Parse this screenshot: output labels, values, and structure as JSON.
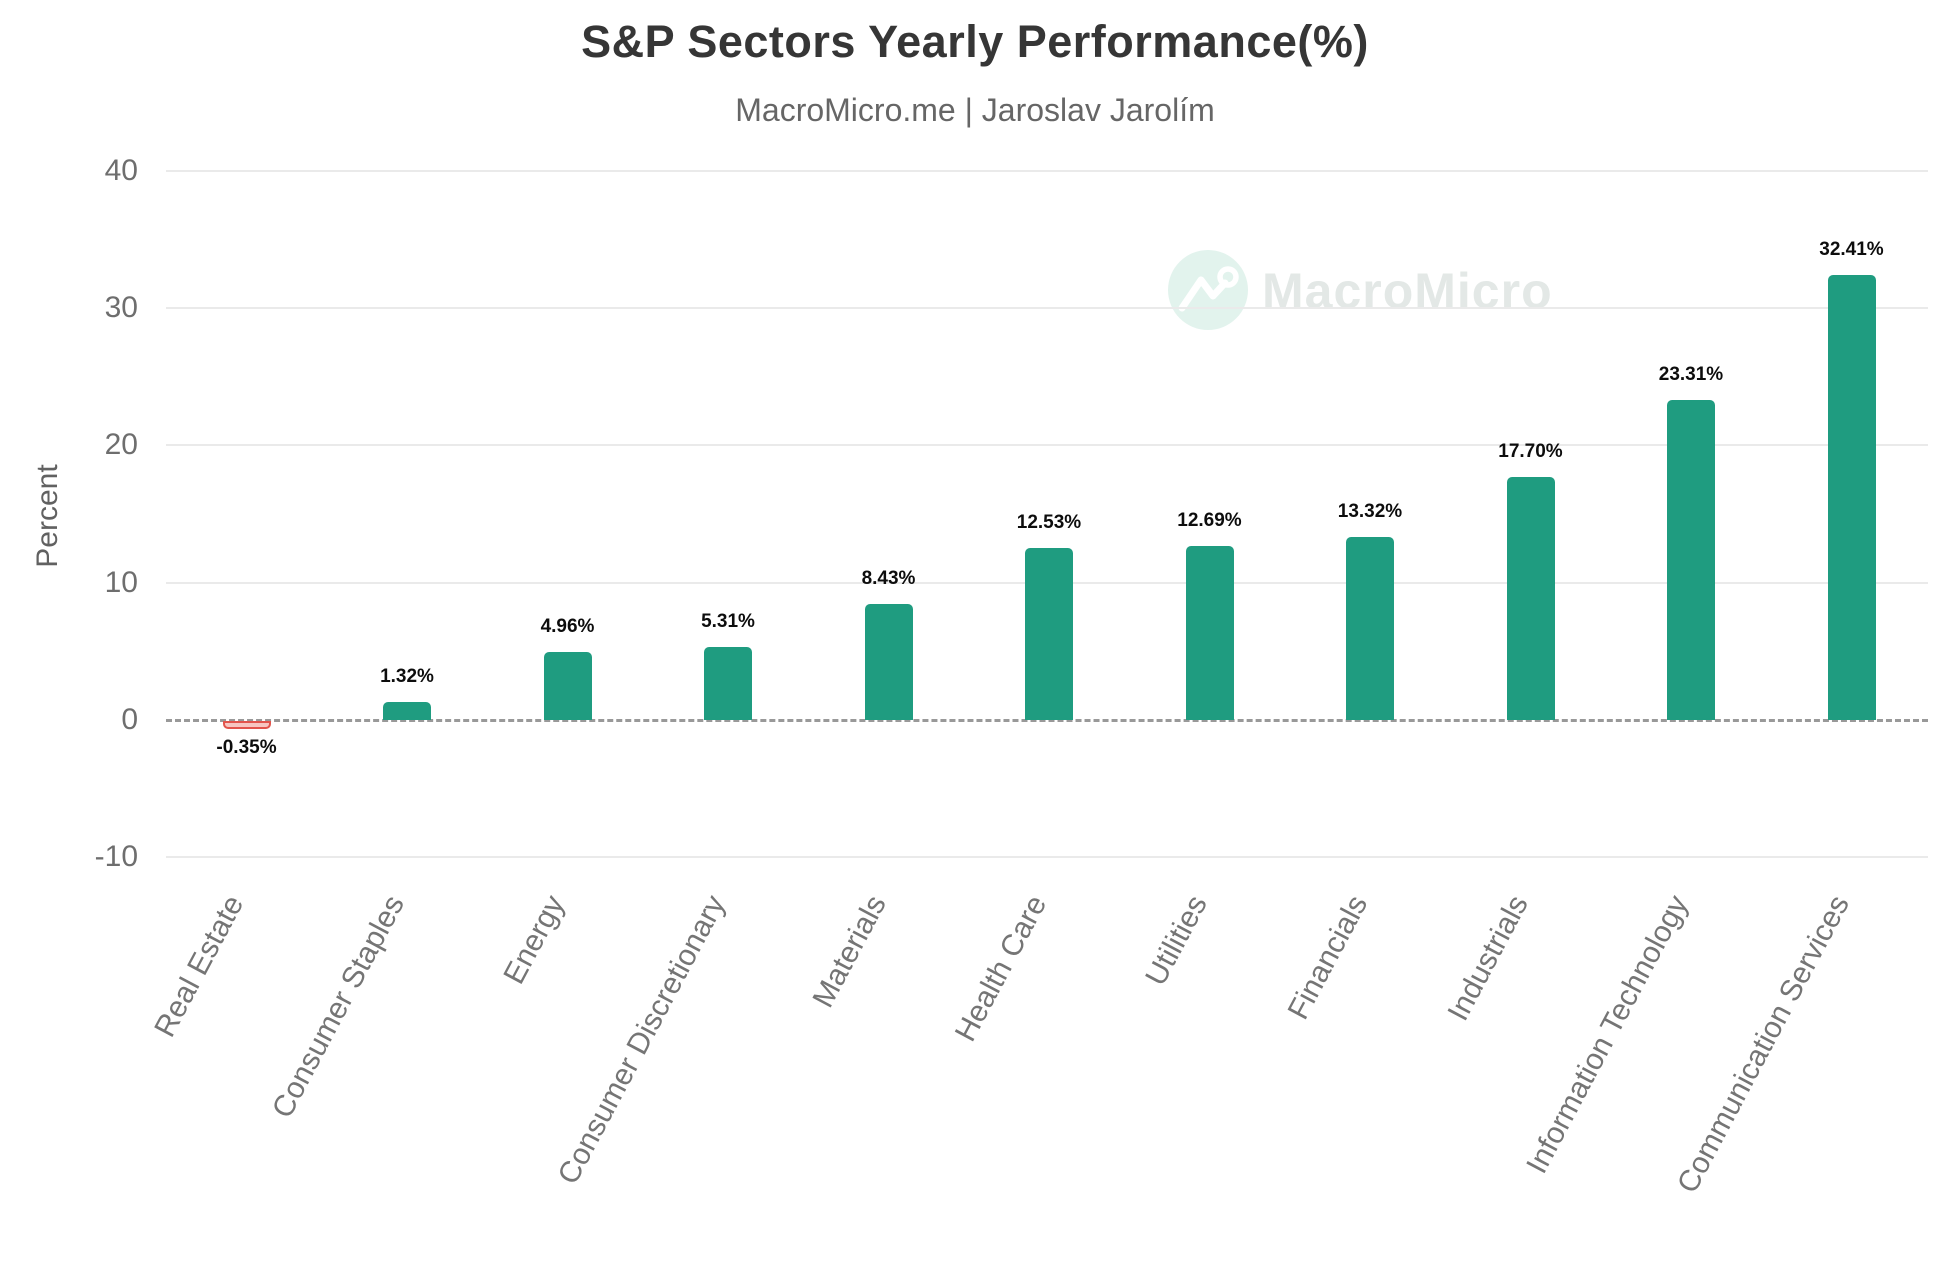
{
  "header": {
    "title": "S&P Sectors Yearly Performance(%)",
    "subtitle": "MacroMicro.me | Jaroslav Jarolím"
  },
  "watermark": {
    "brand": "MacroMicro",
    "icon": "macromicro-line-chart-logo"
  },
  "chart_data": {
    "type": "bar",
    "title": "S&P Sectors Yearly Performance(%)",
    "subtitle": "MacroMicro.me | Jaroslav Jarolím",
    "categories": [
      "Real Estate",
      "Consumer Staples",
      "Energy",
      "Consumer Discretionary",
      "Materials",
      "Health Care",
      "Utilities",
      "Financials",
      "Industrials",
      "Information Technology",
      "Communication Services"
    ],
    "values": [
      -0.35,
      1.32,
      4.96,
      5.31,
      8.43,
      12.53,
      12.69,
      13.32,
      17.7,
      23.31,
      32.41
    ],
    "labels": [
      "-0.35%",
      "1.32%",
      "4.96%",
      "5.31%",
      "8.43%",
      "12.53%",
      "12.69%",
      "13.32%",
      "17.70%",
      "23.31%",
      "32.41%"
    ],
    "xlabel": "",
    "ylabel": "Percent",
    "yticks": [
      40,
      30,
      20,
      10,
      0,
      -10
    ],
    "ylim": [
      -10,
      40
    ],
    "grid": true,
    "zero_line": "dashed",
    "legend": "none",
    "colors": {
      "positive_bar": "#1f9c80",
      "negative_bar": "#e2544c",
      "negative_bar_fill": "#f7c6c1",
      "gridline": "#eaeaea",
      "zero_line": "#999999",
      "title_text": "#363636",
      "subtitle_text": "#666666",
      "axis_text": "#6e6e6e",
      "value_label_text": "#0d0d0d",
      "watermark": "#e2f3ed"
    }
  }
}
